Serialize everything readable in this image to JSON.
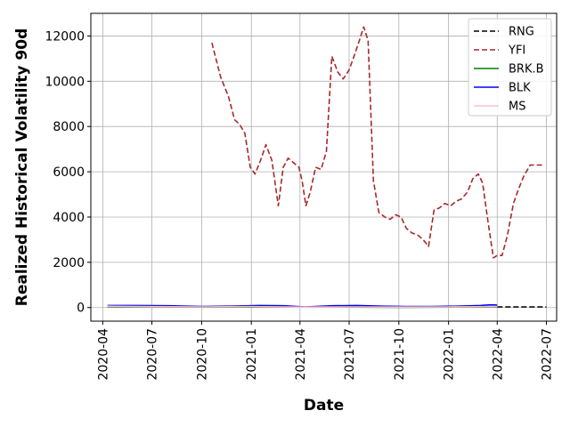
{
  "chart_data": {
    "type": "line",
    "title": "",
    "xlabel": "Date",
    "ylabel": "Realized Historical Volatility 90d",
    "x_ticks": [
      "2020-04",
      "2020-07",
      "2020-10",
      "2021-01",
      "2021-04",
      "2021-07",
      "2021-10",
      "2022-01",
      "2022-04",
      "2022-07"
    ],
    "y_ticks": [
      "0",
      "2000",
      "4000",
      "6000",
      "8000",
      "10000",
      "12000"
    ],
    "xlim": [
      "2020-03-10",
      "2022-07-20"
    ],
    "ylim": [
      -600,
      13000
    ],
    "grid": true,
    "legend_position": "top-right",
    "series": [
      {
        "name": "RNG",
        "color": "#000000",
        "dash": "dashed",
        "x": [
          "2022-04-01",
          "2022-05-01",
          "2022-06-01",
          "2022-07-01"
        ],
        "y": [
          30,
          30,
          30,
          30
        ]
      },
      {
        "name": "YFI",
        "color": "#a52a2a",
        "dash": "dashed",
        "x": [
          "2020-10-20",
          "2020-11-05",
          "2020-11-20",
          "2020-12-01",
          "2020-12-10",
          "2020-12-20",
          "2020-12-30",
          "2021-01-08",
          "2021-01-18",
          "2021-01-28",
          "2021-02-08",
          "2021-02-20",
          "2021-03-01",
          "2021-03-10",
          "2021-03-20",
          "2021-03-30",
          "2021-04-05",
          "2021-04-12",
          "2021-04-20",
          "2021-04-30",
          "2021-05-10",
          "2021-05-20",
          "2021-05-30",
          "2021-06-10",
          "2021-06-20",
          "2021-07-01",
          "2021-07-10",
          "2021-07-20",
          "2021-07-28",
          "2021-08-05",
          "2021-08-15",
          "2021-08-25",
          "2021-09-05",
          "2021-09-15",
          "2021-09-25",
          "2021-10-05",
          "2021-10-15",
          "2021-10-25",
          "2021-11-05",
          "2021-11-15",
          "2021-11-25",
          "2021-12-05",
          "2021-12-15",
          "2021-12-25",
          "2022-01-05",
          "2022-01-15",
          "2022-01-25",
          "2022-02-05",
          "2022-02-15",
          "2022-02-25",
          "2022-03-05",
          "2022-03-15",
          "2022-03-25",
          "2022-04-01",
          "2022-04-10",
          "2022-04-20",
          "2022-05-01",
          "2022-05-10",
          "2022-05-20",
          "2022-06-01",
          "2022-06-15",
          "2022-06-28"
        ],
        "y": [
          11700,
          10200,
          9300,
          8300,
          8100,
          7700,
          6200,
          5900,
          6500,
          7200,
          6500,
          4500,
          6200,
          6600,
          6400,
          6200,
          5600,
          4500,
          5100,
          6200,
          6100,
          6900,
          11100,
          10400,
          10100,
          10500,
          11100,
          11800,
          12400,
          11800,
          5600,
          4200,
          4000,
          3900,
          4100,
          4000,
          3500,
          3300,
          3200,
          3000,
          2700,
          4300,
          4400,
          4600,
          4500,
          4700,
          4800,
          5100,
          5700,
          5900,
          5500,
          3800,
          2200,
          2300,
          2300,
          3200,
          4600,
          5200,
          5800,
          6300,
          6300,
          6300
        ]
      },
      {
        "name": "BRK.B",
        "color": "#008000",
        "dash": "solid",
        "x": [
          "2020-04-10",
          "2020-07-01",
          "2020-10-01",
          "2021-01-01",
          "2021-04-01",
          "2021-07-01",
          "2021-10-01",
          "2022-01-01",
          "2022-04-01"
        ],
        "y": [
          40,
          30,
          20,
          20,
          20,
          20,
          15,
          20,
          20
        ]
      },
      {
        "name": "BLK",
        "color": "#0000ff",
        "dash": "solid",
        "x": [
          "2020-04-10",
          "2020-06-01",
          "2020-08-01",
          "2020-10-01",
          "2020-12-01",
          "2021-01-15",
          "2021-03-01",
          "2021-04-10",
          "2021-06-01",
          "2021-07-15",
          "2021-09-01",
          "2021-10-15",
          "2021-12-01",
          "2022-01-15",
          "2022-03-01",
          "2022-03-20",
          "2022-04-01"
        ],
        "y": [
          90,
          90,
          80,
          50,
          70,
          90,
          80,
          30,
          80,
          90,
          60,
          50,
          50,
          60,
          90,
          120,
          110
        ]
      },
      {
        "name": "MS",
        "color": "#ffc0cb",
        "dash": "solid",
        "x": [
          "2020-04-10",
          "2020-07-01",
          "2020-10-01",
          "2021-01-01",
          "2021-04-01",
          "2021-07-01",
          "2021-10-01",
          "2022-01-01",
          "2022-04-01"
        ],
        "y": [
          60,
          40,
          30,
          40,
          20,
          30,
          20,
          30,
          40
        ]
      }
    ]
  }
}
